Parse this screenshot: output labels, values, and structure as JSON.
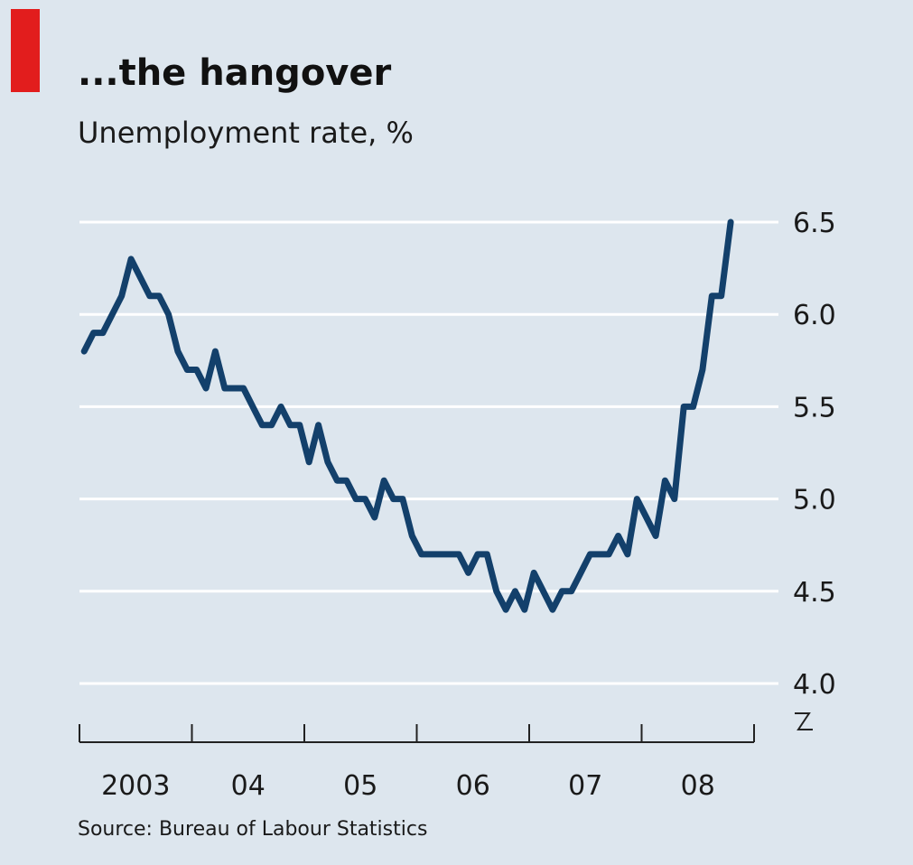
{
  "colors": {
    "background": "#dde6ee",
    "accent": "#e21d1d",
    "line": "#13406b",
    "grid": "#ffffff",
    "axis": "#222222",
    "text": "#1a1a1a"
  },
  "title": "...the hangover",
  "subtitle": "Unemployment rate, %",
  "source": "Source: Bureau of Labour Statistics",
  "chart_data": {
    "type": "line",
    "title": "...the hangover",
    "subtitle": "Unemployment rate, %",
    "xlabel": "",
    "ylabel": "Unemployment rate, %",
    "ylim": [
      4.0,
      6.5
    ],
    "y_ticks": [
      "4.0",
      "4.5",
      "5.0",
      "5.5",
      "6.0",
      "6.5"
    ],
    "x_tick_labels": [
      "2003",
      "04",
      "05",
      "06",
      "07",
      "08"
    ],
    "y_axis_position": "right",
    "y_axis_break": true,
    "grid": true,
    "x_start": "2003-01",
    "series": [
      {
        "values": [
          5.8,
          5.9,
          5.9,
          6.0,
          6.1,
          6.3,
          6.2,
          6.1,
          6.1,
          6.0,
          5.8,
          5.7,
          5.7,
          5.6,
          5.8,
          5.6,
          5.6,
          5.6,
          5.5,
          5.4,
          5.4,
          5.5,
          5.4,
          5.4,
          5.2,
          5.4,
          5.2,
          5.1,
          5.1,
          5.0,
          5.0,
          4.9,
          5.1,
          5.0,
          5.0,
          4.8,
          4.7,
          4.7,
          4.7,
          4.7,
          4.7,
          4.6,
          4.7,
          4.7,
          4.5,
          4.4,
          4.5,
          4.4,
          4.6,
          4.5,
          4.4,
          4.5,
          4.5,
          4.6,
          4.7,
          4.7,
          4.7,
          4.8,
          4.7,
          5.0,
          4.9,
          4.8,
          5.1,
          5.0,
          5.5,
          5.5,
          5.7,
          6.1,
          6.1,
          6.5
        ]
      }
    ]
  }
}
